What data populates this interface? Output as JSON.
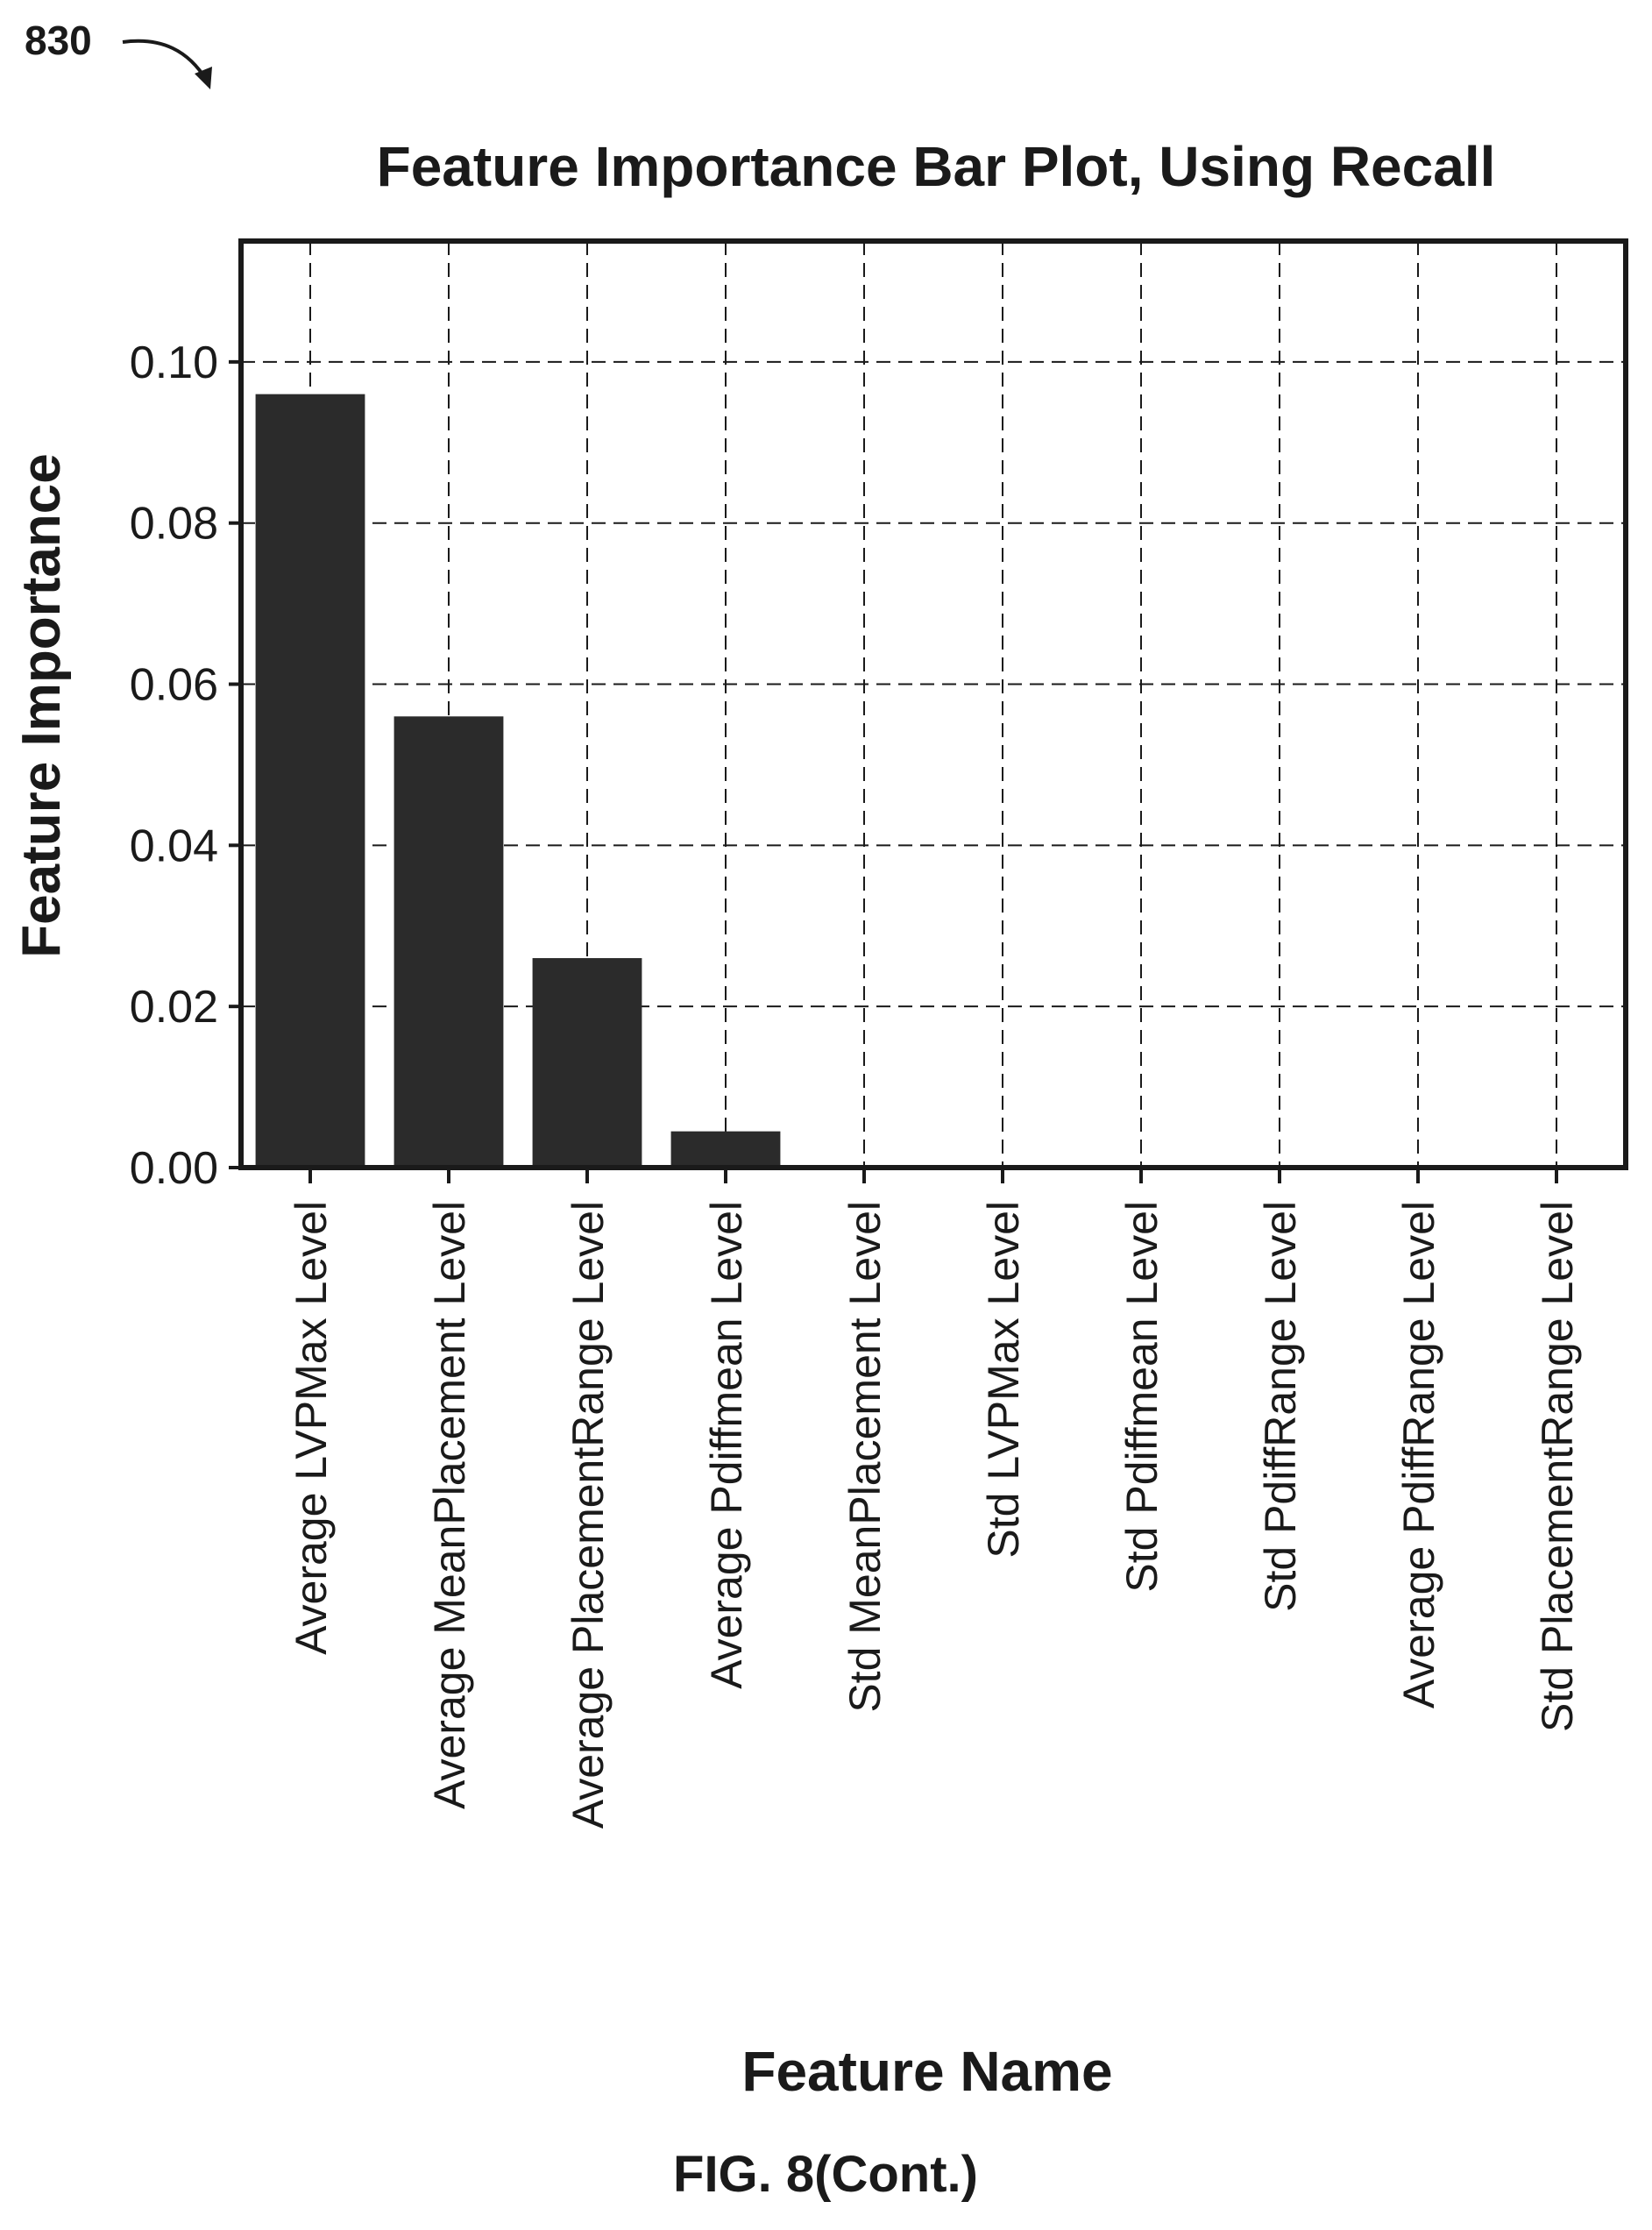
{
  "figure": {
    "ref_number": "830",
    "caption": "FIG. 8(Cont.)"
  },
  "chart_data": {
    "type": "bar",
    "title": "Feature Importance Bar Plot, Using Recall",
    "xlabel": "Feature Name",
    "ylabel": "Feature Importance",
    "categories": [
      "Average LVPMax Level",
      "Average MeanPlacement Level",
      "Average PlacementRange Level",
      "Average Pdiffmean Level",
      "Std MeanPlacement Level",
      "Std LVPMax Level",
      "Std Pdiffmean Level",
      "Std PdiffRange Level",
      "Average PdiffRange Level",
      "Std PlacementRange Level"
    ],
    "values": [
      0.096,
      0.056,
      0.026,
      0.0045,
      0.0,
      0.0,
      0.0,
      0.0,
      0.0,
      0.0
    ],
    "ylim": [
      0,
      0.115
    ],
    "yticks": [
      "0.00",
      "0.02",
      "0.04",
      "0.06",
      "0.08",
      "0.10"
    ],
    "grid": true,
    "grid_style": "dashed",
    "bar_color": "#2b2b2b",
    "frame_color": "#1a1a1a"
  }
}
